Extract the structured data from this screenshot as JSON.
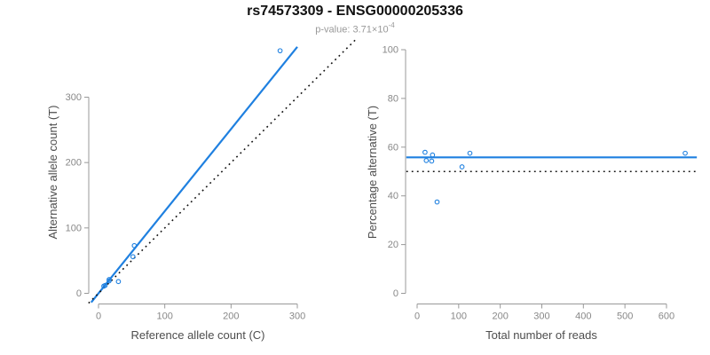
{
  "figure": {
    "title": "rs74573309 - ENSG00000205336",
    "subtitle": {
      "prefix": "p-value: 3.71",
      "times": "×",
      "base": "10",
      "exponent": "-4"
    }
  },
  "colors": {
    "accent_blue": "#1f80e0",
    "dotted_black": "#111111",
    "axis_line": "#999999",
    "tick_text": "#888888",
    "axis_label_text": "#4d4d4d"
  },
  "chart_data": [
    {
      "type": "scatter",
      "name": "allele-counts-panel",
      "xlabel": "Reference allele count (C)",
      "ylabel": "Alternative allele count (T)",
      "x_ticks": [
        0,
        100,
        200,
        300
      ],
      "y_ticks": [
        0,
        100,
        200,
        300
      ],
      "xlim": [
        -15,
        389
      ],
      "ylim": [
        -15,
        389
      ],
      "points": [
        [
          8,
          11
        ],
        [
          10,
          12
        ],
        [
          16,
          21
        ],
        [
          16,
          19
        ],
        [
          30,
          18
        ],
        [
          52,
          56
        ],
        [
          54,
          73
        ],
        [
          274,
          371
        ]
      ],
      "lines": [
        {
          "name": "fit-line",
          "style": "solid",
          "color": "#1f80e0",
          "x1": -11,
          "y1": -13.8,
          "x2": 300,
          "y2": 377
        },
        {
          "name": "identity-line",
          "style": "dotted",
          "color": "#111111",
          "x1": -15,
          "y1": -15,
          "x2": 389,
          "y2": 389
        }
      ]
    },
    {
      "type": "scatter",
      "name": "percentage-panel",
      "xlabel": "Total number of reads",
      "ylabel": "Percentage alternative (T)",
      "x_ticks": [
        0,
        100,
        200,
        300,
        400,
        500,
        600
      ],
      "y_ticks": [
        0,
        20,
        40,
        60,
        80,
        100
      ],
      "xlim": [
        -26,
        673
      ],
      "ylim": [
        -4,
        104
      ],
      "points": [
        [
          19,
          57.9
        ],
        [
          22,
          54.5
        ],
        [
          37,
          56.8
        ],
        [
          35,
          54.3
        ],
        [
          48,
          37.5
        ],
        [
          108,
          51.9
        ],
        [
          127,
          57.5
        ],
        [
          645,
          57.5
        ]
      ],
      "lines": [
        {
          "name": "mean-percentage-line",
          "style": "solid",
          "color": "#1f80e0",
          "x1": -26,
          "y1": 55.8,
          "x2": 673,
          "y2": 55.8
        },
        {
          "name": "fifty-percent-reference-line",
          "style": "dotted",
          "color": "#111111",
          "x1": -26,
          "y1": 50,
          "x2": 673,
          "y2": 50
        }
      ]
    }
  ]
}
